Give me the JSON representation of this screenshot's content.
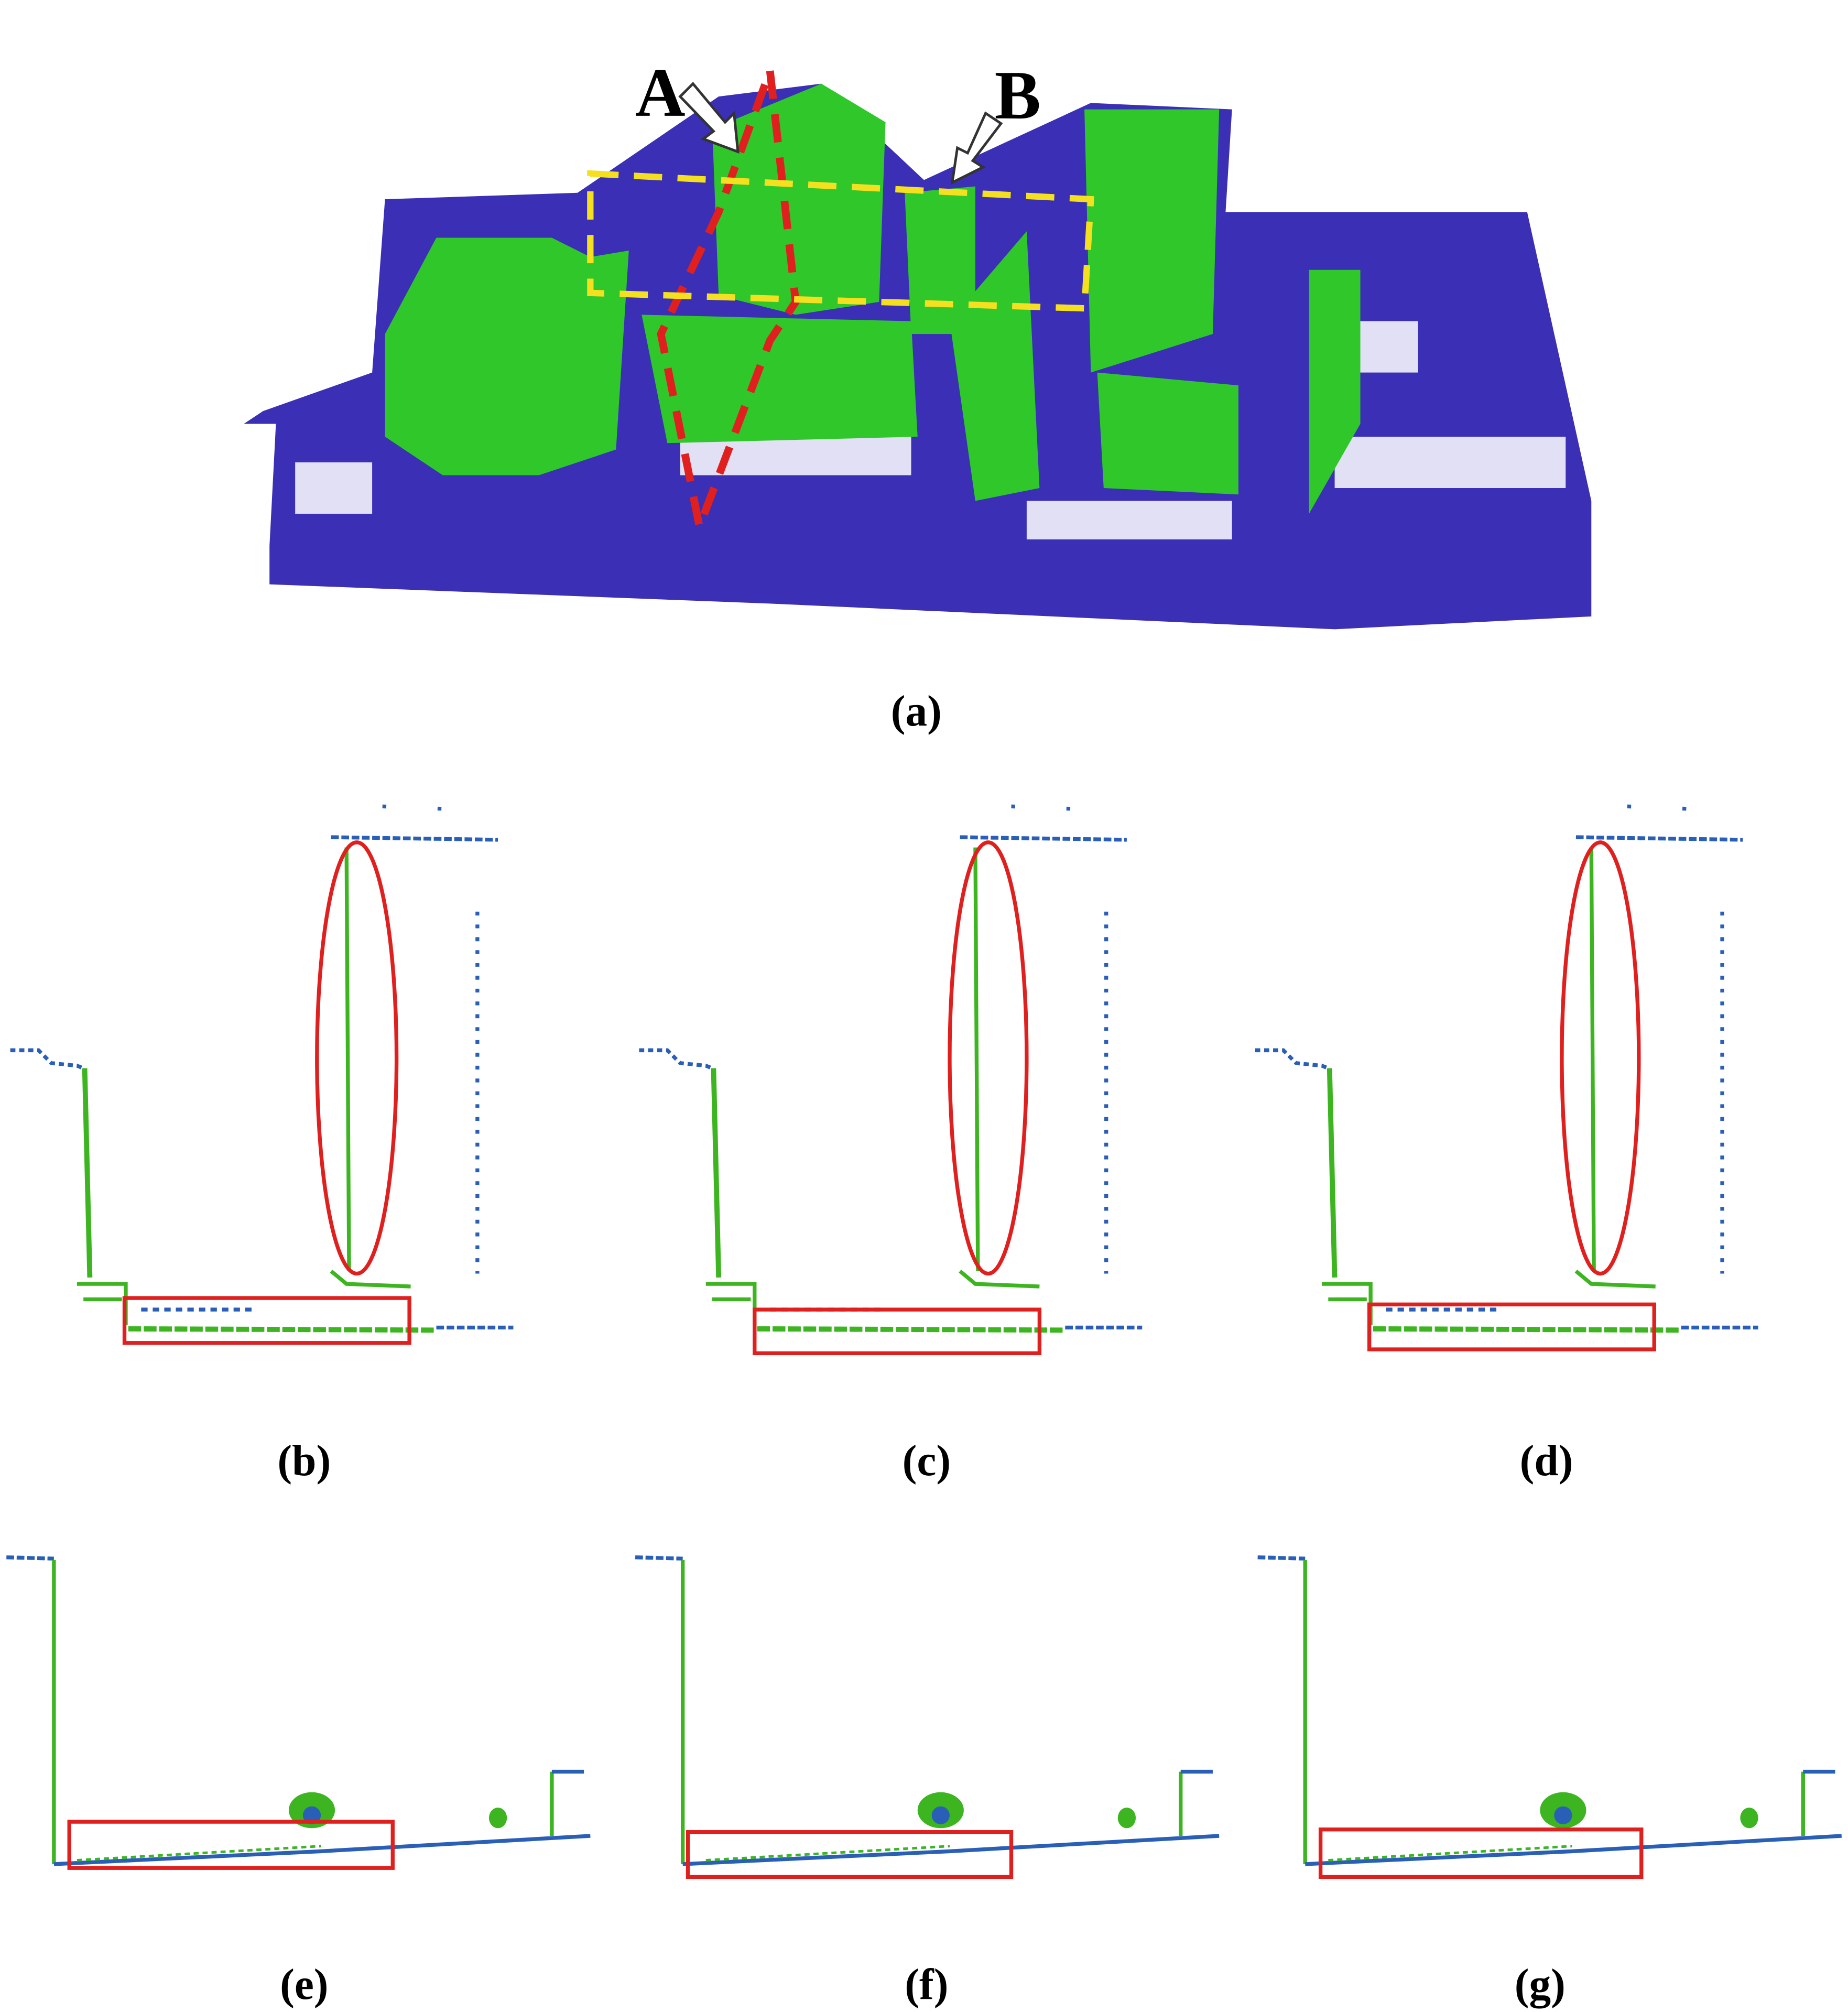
{
  "labels": {
    "A": "A",
    "B": "B"
  },
  "captions": [
    "(a)",
    "(b)",
    "(c)",
    "(d)",
    "(e)",
    "(f)",
    "(g)"
  ]
}
